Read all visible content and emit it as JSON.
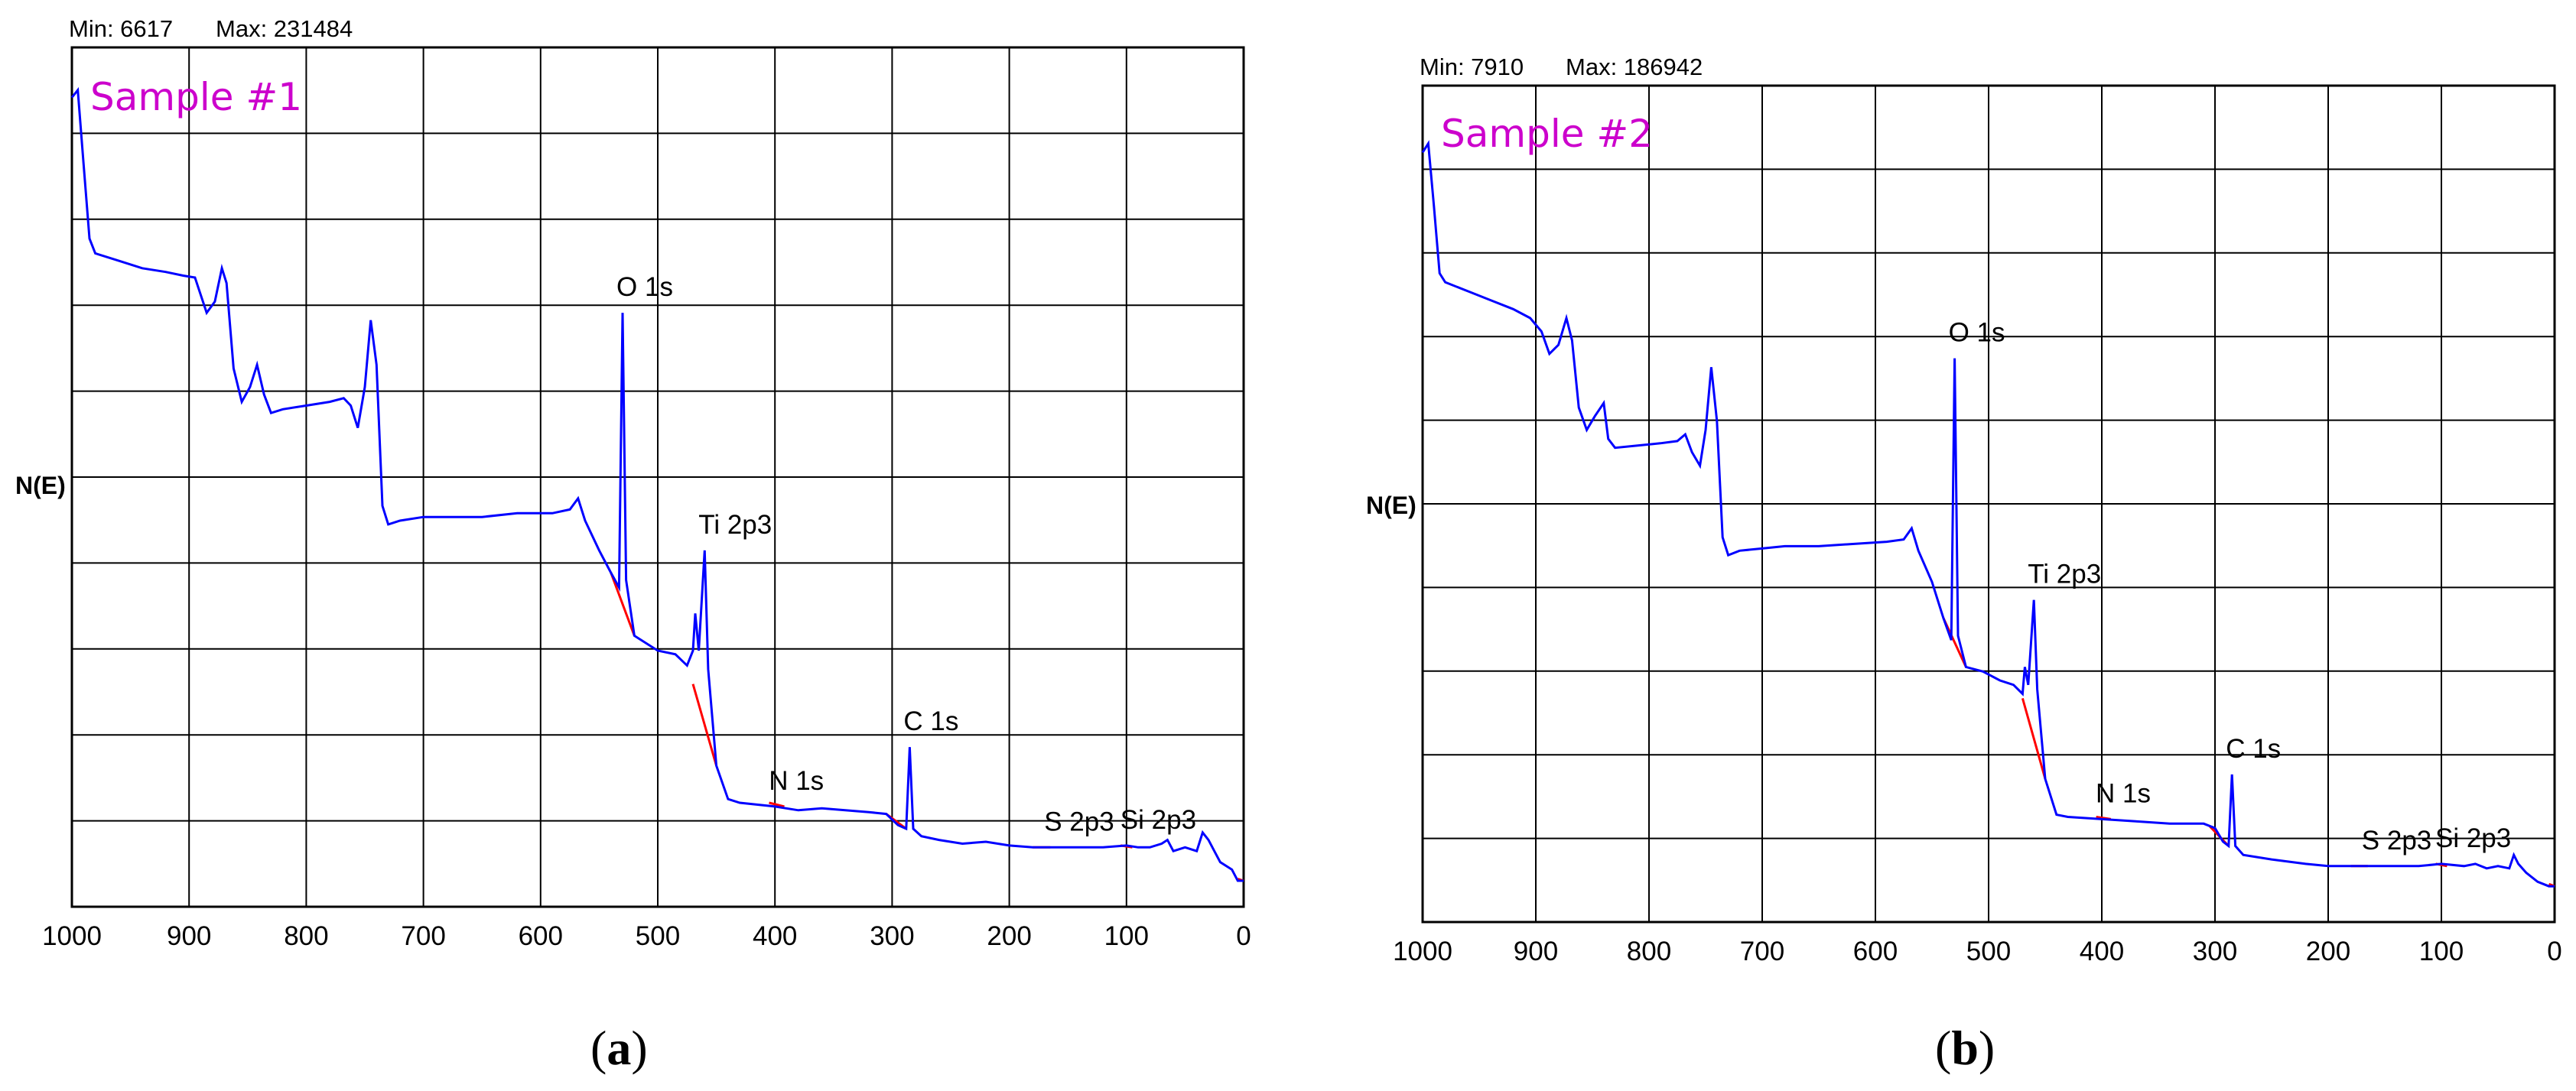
{
  "chart_data": [
    {
      "type": "line",
      "min_label": "Min: 6617",
      "max_label": "Max: 231484",
      "ylabel": "N(E)",
      "sample_label": "Sample #1",
      "caption_letter": "a",
      "x_ticks": [
        "1000",
        "900",
        "800",
        "700",
        "600",
        "500",
        "400",
        "300",
        "200",
        "100",
        "0"
      ],
      "xlim": [
        1000,
        0
      ],
      "ylim": [
        0,
        231484
      ],
      "grid": true,
      "series": [
        {
          "color": "#0000ff",
          "points": [
            [
              1000,
              218000
            ],
            [
              995,
              220000
            ],
            [
              990,
              200000
            ],
            [
              985,
              180000
            ],
            [
              980,
              176000
            ],
            [
              960,
              174000
            ],
            [
              940,
              172000
            ],
            [
              920,
              171000
            ],
            [
              905,
              170000
            ],
            [
              895,
              169500
            ],
            [
              885,
              160000
            ],
            [
              878,
              163000
            ],
            [
              872,
              172000
            ],
            [
              868,
              168000
            ],
            [
              862,
              145000
            ],
            [
              855,
              136000
            ],
            [
              848,
              140000
            ],
            [
              842,
              146000
            ],
            [
              836,
              138000
            ],
            [
              830,
              133000
            ],
            [
              820,
              134000
            ],
            [
              800,
              135000
            ],
            [
              780,
              136000
            ],
            [
              768,
              137000
            ],
            [
              762,
              135000
            ],
            [
              756,
              129000
            ],
            [
              750,
              140000
            ],
            [
              745,
              158000
            ],
            [
              740,
              146000
            ],
            [
              735,
              108000
            ],
            [
              730,
              103000
            ],
            [
              720,
              104000
            ],
            [
              700,
              105000
            ],
            [
              680,
              105000
            ],
            [
              650,
              105000
            ],
            [
              620,
              106000
            ],
            [
              590,
              106000
            ],
            [
              575,
              107000
            ],
            [
              568,
              110000
            ],
            [
              562,
              104000
            ],
            [
              550,
              96000
            ],
            [
              540,
              90000
            ],
            [
              533,
              86000
            ],
            [
              530,
              160000
            ],
            [
              527,
              88000
            ],
            [
              520,
              73000
            ],
            [
              500,
              69000
            ],
            [
              485,
              68000
            ],
            [
              475,
              65000
            ],
            [
              470,
              69000
            ],
            [
              468,
              79000
            ],
            [
              465,
              69000
            ],
            [
              460,
              96000
            ],
            [
              457,
              64000
            ],
            [
              450,
              38000
            ],
            [
              440,
              29000
            ],
            [
              430,
              28000
            ],
            [
              400,
              27000
            ],
            [
              380,
              26000
            ],
            [
              360,
              26500
            ],
            [
              340,
              26000
            ],
            [
              320,
              25500
            ],
            [
              305,
              25000
            ],
            [
              295,
              22000
            ],
            [
              288,
              21000
            ],
            [
              285,
              43000
            ],
            [
              282,
              21000
            ],
            [
              275,
              19000
            ],
            [
              260,
              18000
            ],
            [
              240,
              17000
            ],
            [
              220,
              17500
            ],
            [
              200,
              16500
            ],
            [
              180,
              16000
            ],
            [
              150,
              16000
            ],
            [
              120,
              16000
            ],
            [
              100,
              16500
            ],
            [
              90,
              16000
            ],
            [
              80,
              16000
            ],
            [
              70,
              17000
            ],
            [
              65,
              18000
            ],
            [
              60,
              15000
            ],
            [
              50,
              16000
            ],
            [
              40,
              15000
            ],
            [
              35,
              20000
            ],
            [
              30,
              18000
            ],
            [
              25,
              15000
            ],
            [
              20,
              12000
            ],
            [
              10,
              10000
            ],
            [
              5,
              7000
            ],
            [
              0,
              7000
            ]
          ]
        }
      ],
      "fit_segments": [
        [
          [
            540,
            90000
          ],
          [
            520,
            73000
          ]
        ],
        [
          [
            470,
            60000
          ],
          [
            450,
            38000
          ]
        ],
        [
          [
            405,
            28000
          ],
          [
            392,
            27000
          ]
        ],
        [
          [
            305,
            25000
          ],
          [
            288,
            21000
          ]
        ],
        [
          [
            180,
            16000
          ],
          [
            165,
            16000
          ]
        ],
        [
          [
            105,
            16500
          ],
          [
            95,
            16000
          ]
        ],
        [
          [
            5,
            7500
          ],
          [
            0,
            7000
          ]
        ]
      ],
      "annotations": [
        {
          "text": "O 1s",
          "x": 530,
          "y": 160000
        },
        {
          "text": "Ti 2p3",
          "x": 460,
          "y": 96000
        },
        {
          "text": "N 1s",
          "x": 400,
          "y": 27000
        },
        {
          "text": "C 1s",
          "x": 285,
          "y": 43000
        },
        {
          "text": "S 2p3",
          "x": 165,
          "y": 16000
        },
        {
          "text": "Si 2p3",
          "x": 100,
          "y": 16500
        }
      ]
    },
    {
      "type": "line",
      "min_label": "Min: 7910",
      "max_label": "Max: 186942",
      "ylabel": "N(E)",
      "sample_label": "Sample #2",
      "caption_letter": "b",
      "x_ticks": [
        "1000",
        "900",
        "800",
        "700",
        "600",
        "500",
        "400",
        "300",
        "200",
        "100",
        "0"
      ],
      "xlim": [
        1000,
        0
      ],
      "ylim": [
        0,
        186942
      ],
      "grid": true,
      "series": [
        {
          "color": "#0000ff",
          "points": [
            [
              1000,
              172000
            ],
            [
              995,
              174000
            ],
            [
              990,
              160000
            ],
            [
              985,
              145000
            ],
            [
              980,
              143000
            ],
            [
              960,
              141000
            ],
            [
              940,
              139000
            ],
            [
              920,
              137000
            ],
            [
              905,
              135000
            ],
            [
              895,
              132000
            ],
            [
              888,
              127000
            ],
            [
              880,
              129000
            ],
            [
              873,
              135000
            ],
            [
              868,
              130000
            ],
            [
              862,
              115000
            ],
            [
              855,
              110000
            ],
            [
              848,
              113000
            ],
            [
              840,
              116000
            ],
            [
              836,
              108000
            ],
            [
              830,
              106000
            ],
            [
              810,
              106500
            ],
            [
              790,
              107000
            ],
            [
              775,
              107500
            ],
            [
              768,
              109000
            ],
            [
              762,
              105000
            ],
            [
              755,
              102000
            ],
            [
              750,
              110000
            ],
            [
              745,
              124000
            ],
            [
              740,
              112000
            ],
            [
              735,
              86000
            ],
            [
              730,
              82000
            ],
            [
              720,
              83000
            ],
            [
              700,
              83500
            ],
            [
              680,
              84000
            ],
            [
              650,
              84000
            ],
            [
              620,
              84500
            ],
            [
              590,
              85000
            ],
            [
              575,
              85500
            ],
            [
              568,
              88000
            ],
            [
              562,
              83000
            ],
            [
              550,
              76000
            ],
            [
              540,
              68000
            ],
            [
              533,
              63000
            ],
            [
              530,
              126000
            ],
            [
              527,
              64000
            ],
            [
              520,
              57000
            ],
            [
              505,
              56000
            ],
            [
              490,
              54000
            ],
            [
              478,
              53000
            ],
            [
              470,
              51000
            ],
            [
              468,
              57000
            ],
            [
              465,
              53000
            ],
            [
              460,
              72000
            ],
            [
              457,
              52000
            ],
            [
              450,
              32000
            ],
            [
              440,
              24000
            ],
            [
              430,
              23500
            ],
            [
              400,
              23000
            ],
            [
              370,
              22500
            ],
            [
              340,
              22000
            ],
            [
              310,
              22000
            ],
            [
              300,
              21000
            ],
            [
              293,
              18000
            ],
            [
              288,
              17000
            ],
            [
              285,
              33000
            ],
            [
              282,
              17000
            ],
            [
              275,
              15000
            ],
            [
              250,
              14000
            ],
            [
              220,
              13000
            ],
            [
              200,
              12500
            ],
            [
              180,
              12500
            ],
            [
              150,
              12500
            ],
            [
              120,
              12500
            ],
            [
              100,
              13000
            ],
            [
              80,
              12500
            ],
            [
              70,
              13000
            ],
            [
              60,
              12000
            ],
            [
              50,
              12500
            ],
            [
              40,
              12000
            ],
            [
              36,
              15000
            ],
            [
              32,
              13000
            ],
            [
              25,
              11000
            ],
            [
              15,
              9000
            ],
            [
              5,
              8000
            ],
            [
              0,
              8000
            ]
          ]
        }
      ],
      "fit_segments": [
        [
          [
            540,
            68000
          ],
          [
            520,
            57000
          ]
        ],
        [
          [
            470,
            50000
          ],
          [
            450,
            32000
          ]
        ],
        [
          [
            405,
            23500
          ],
          [
            392,
            23000
          ]
        ],
        [
          [
            305,
            21500
          ],
          [
            288,
            17000
          ]
        ],
        [
          [
            180,
            12500
          ],
          [
            165,
            12500
          ]
        ],
        [
          [
            105,
            13000
          ],
          [
            95,
            12500
          ]
        ],
        [
          [
            5,
            8500
          ],
          [
            0,
            8000
          ]
        ]
      ],
      "annotations": [
        {
          "text": "O 1s",
          "x": 530,
          "y": 126000
        },
        {
          "text": "Ti 2p3",
          "x": 460,
          "y": 72000
        },
        {
          "text": "N 1s",
          "x": 400,
          "y": 23000
        },
        {
          "text": "C 1s",
          "x": 285,
          "y": 33000
        },
        {
          "text": "S 2p3",
          "x": 165,
          "y": 12500
        },
        {
          "text": "Si 2p3",
          "x": 100,
          "y": 13000
        }
      ]
    }
  ]
}
